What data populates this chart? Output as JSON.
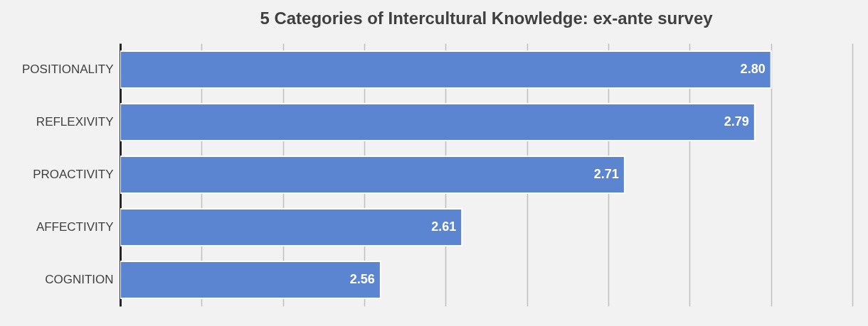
{
  "chart_data": {
    "type": "bar",
    "orientation": "horizontal",
    "title": "5 Categories of Intercultural Knowledge: ex-ante survey",
    "categories": [
      "POSITIONALITY",
      "REFLEXIVITY",
      "PROACTIVITY",
      "AFFECTIVITY",
      "COGNITION"
    ],
    "values": [
      2.8,
      2.79,
      2.71,
      2.61,
      2.56
    ],
    "value_labels": [
      "2.80",
      "2.79",
      "2.71",
      "2.61",
      "2.56"
    ],
    "color": "#5b84d1",
    "xlim": [
      2.4,
      2.85
    ],
    "xticks": [
      {
        "value": 2.4,
        "label": null
      },
      {
        "value": 2.45,
        "label": null
      },
      {
        "value": 2.5,
        "label": null
      },
      {
        "value": 2.55,
        "label": null
      },
      {
        "value": 2.6,
        "label": null
      },
      {
        "value": 2.65,
        "label": null
      },
      {
        "value": 2.7,
        "label": null
      },
      {
        "value": 2.75,
        "label": null
      },
      {
        "value": 2.8,
        "label": null
      },
      {
        "value": 2.85,
        "label": null
      }
    ],
    "tick_labels": "y",
    "grid": "x"
  }
}
